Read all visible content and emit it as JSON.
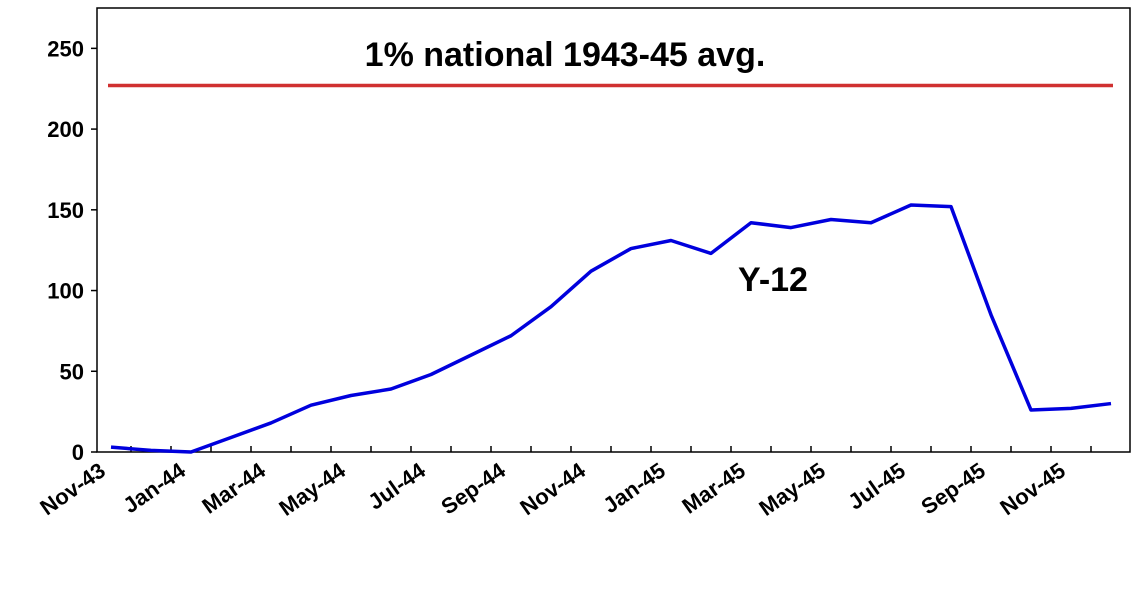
{
  "chart_data": {
    "type": "line",
    "categories": [
      "Nov-43",
      null,
      "Jan-44",
      null,
      "Mar-44",
      null,
      "May-44",
      null,
      "Jul-44",
      null,
      "Sep-44",
      null,
      "Nov-44",
      null,
      "Jan-45",
      null,
      "Mar-45",
      null,
      "May-45",
      null,
      "Jul-45",
      null,
      "Sep-45",
      null,
      "Nov-45",
      null
    ],
    "series": [
      {
        "name": "Y-12",
        "color": "#0000dd",
        "values": [
          3,
          1,
          0,
          9,
          18,
          29,
          35,
          39,
          48,
          60,
          72,
          90,
          112,
          126,
          131,
          123,
          142,
          139,
          144,
          142,
          153,
          152,
          85,
          26,
          27,
          30
        ]
      }
    ],
    "reference_line": {
      "value": 227,
      "label": "1% national 1943-45 avg.",
      "color": "#d03030"
    },
    "ylim": [
      0,
      275
    ],
    "yticks": [
      0,
      50,
      100,
      150,
      200,
      250
    ],
    "grid": false
  }
}
